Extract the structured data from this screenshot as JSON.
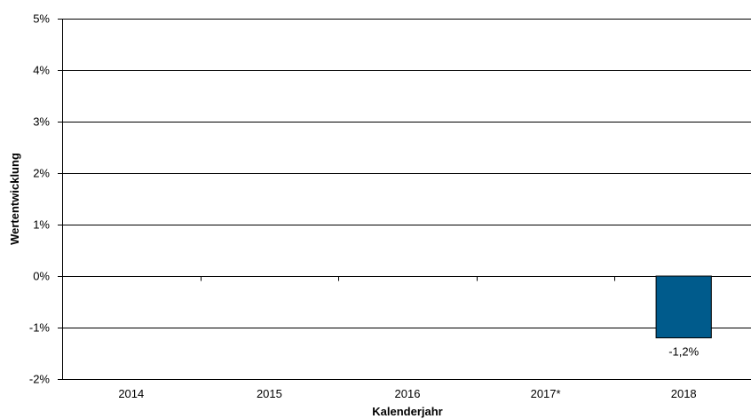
{
  "chart_data": {
    "type": "bar",
    "title": "",
    "xlabel": "Kalenderjahr",
    "ylabel": "Wertentwicklung",
    "categories": [
      "2014",
      "2015",
      "2016",
      "2017*",
      "2018"
    ],
    "values": [
      null,
      null,
      null,
      null,
      -1.2
    ],
    "data_labels": [
      "",
      "",
      "",
      "",
      "-1,2%"
    ],
    "ylim": [
      -2,
      5
    ],
    "yticks": [
      -2,
      -1,
      0,
      1,
      2,
      3,
      4,
      5
    ],
    "ytick_labels": [
      "-2%",
      "-1%",
      "0%",
      "1%",
      "2%",
      "3%",
      "4%",
      "5%"
    ],
    "grid": true,
    "legend": "none",
    "colors": {
      "bar": "#005B8C",
      "bar_border": "#000000",
      "grid": "#000000"
    }
  }
}
